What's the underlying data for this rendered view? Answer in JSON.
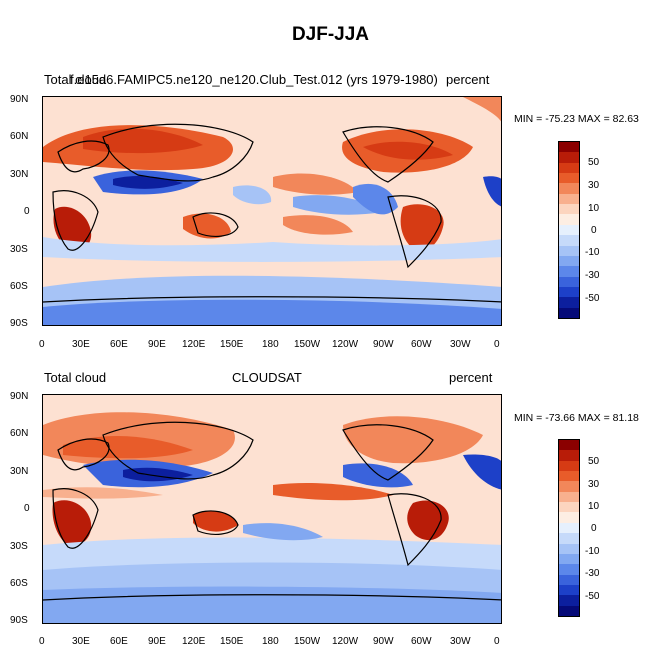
{
  "figure": {
    "title": "DJF-JJA"
  },
  "panels": [
    {
      "left_label": "Total cloud",
      "center_label": "f.e15a6.FAMIPC5.ne120_ne120.Club_Test.012 (yrs 1979-1980)",
      "right_label": "percent",
      "stats": "MIN = -75.23 MAX =  82.63"
    },
    {
      "left_label": "Total cloud",
      "center_label": "CLOUDSAT",
      "right_label": "percent",
      "stats": "MIN = -73.66 MAX =  81.18"
    }
  ],
  "axes": {
    "lat_ticks": [
      "90N",
      "60N",
      "30N",
      "0",
      "30S",
      "60S",
      "90S"
    ],
    "lon_ticks": [
      "0",
      "30E",
      "60E",
      "90E",
      "120E",
      "150E",
      "180",
      "150W",
      "120W",
      "90W",
      "60W",
      "30W",
      "0"
    ]
  },
  "colorbar": {
    "labels": [
      "50",
      "30",
      "10",
      "0",
      "-10",
      "-30",
      "-50"
    ],
    "colors": [
      "#8b0000",
      "#b81c08",
      "#d63b14",
      "#e85c2a",
      "#f2875a",
      "#f8b08e",
      "#fcd5bf",
      "#fdeee3",
      "#e6f0fd",
      "#c6dafa",
      "#a6c3f6",
      "#82a8f1",
      "#5c87ea",
      "#3a63dc",
      "#1d40c8",
      "#0c1f9e",
      "#050a78"
    ]
  }
}
